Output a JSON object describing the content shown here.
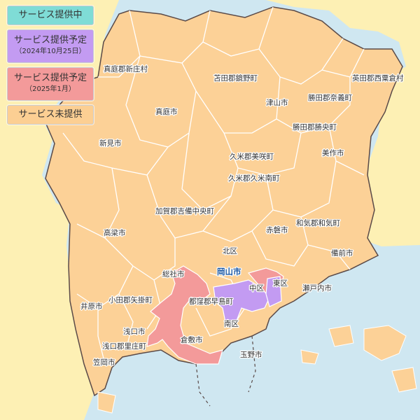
{
  "legend": {
    "items": [
      {
        "label": "サービス提供中",
        "sub": "",
        "color": "#7fdcd6"
      },
      {
        "label": "サービス提供予定",
        "sub": "（2024年10月25日）",
        "color": "#c39bf2"
      },
      {
        "label": "サービス提供予定",
        "sub": "（2025年1月）",
        "color": "#f39a9a"
      },
      {
        "label": "サービス未提供",
        "sub": "",
        "color": "#fccf93"
      }
    ]
  },
  "colors": {
    "sea": "#cfe7f1",
    "neighbor": "#fdf0b4",
    "unserved": "#fcd197",
    "planned_2024": "#c39bf2",
    "planned_2025": "#f39a9a",
    "border": "#ffffff",
    "outer_border": "#5a4a48"
  },
  "places": {
    "maniwa_shinjo": "真庭郡新庄村",
    "tomata_kagamino": "苫田郡鏡野町",
    "aida_nishiawakura": "英田郡西粟倉村",
    "tsuyama": "津山市",
    "katsuta_nagi": "勝田郡奈義町",
    "maniwa": "真庭市",
    "katsuta_shoo": "勝田郡勝央町",
    "niimi": "新見市",
    "mimasaka": "美作市",
    "kume_misaki": "久米郡美咲町",
    "kume_kumenan": "久米郡久米南町",
    "kaga_kibichuo": "加賀郡吉備中央町",
    "takahashi": "高梁市",
    "akaiwa": "赤磐市",
    "wake_wake": "和気郡和気町",
    "kita_ku": "北区",
    "bizen": "備前市",
    "soja": "総社市",
    "okayama": "岡山市",
    "naka_ku": "中区",
    "higashi_ku": "東区",
    "setouchi": "瀬戸内市",
    "oda_yakage": "小田郡矢掛町",
    "tsukubo_hayashima": "都窪郡早島町",
    "ibara": "井原市",
    "minami_ku": "南区",
    "asakuchi": "浅口市",
    "kurashiki": "倉敷市",
    "asakuchi_satosho": "浅口郡里庄町",
    "tamano": "玉野市",
    "kasaoka": "笠岡市"
  }
}
